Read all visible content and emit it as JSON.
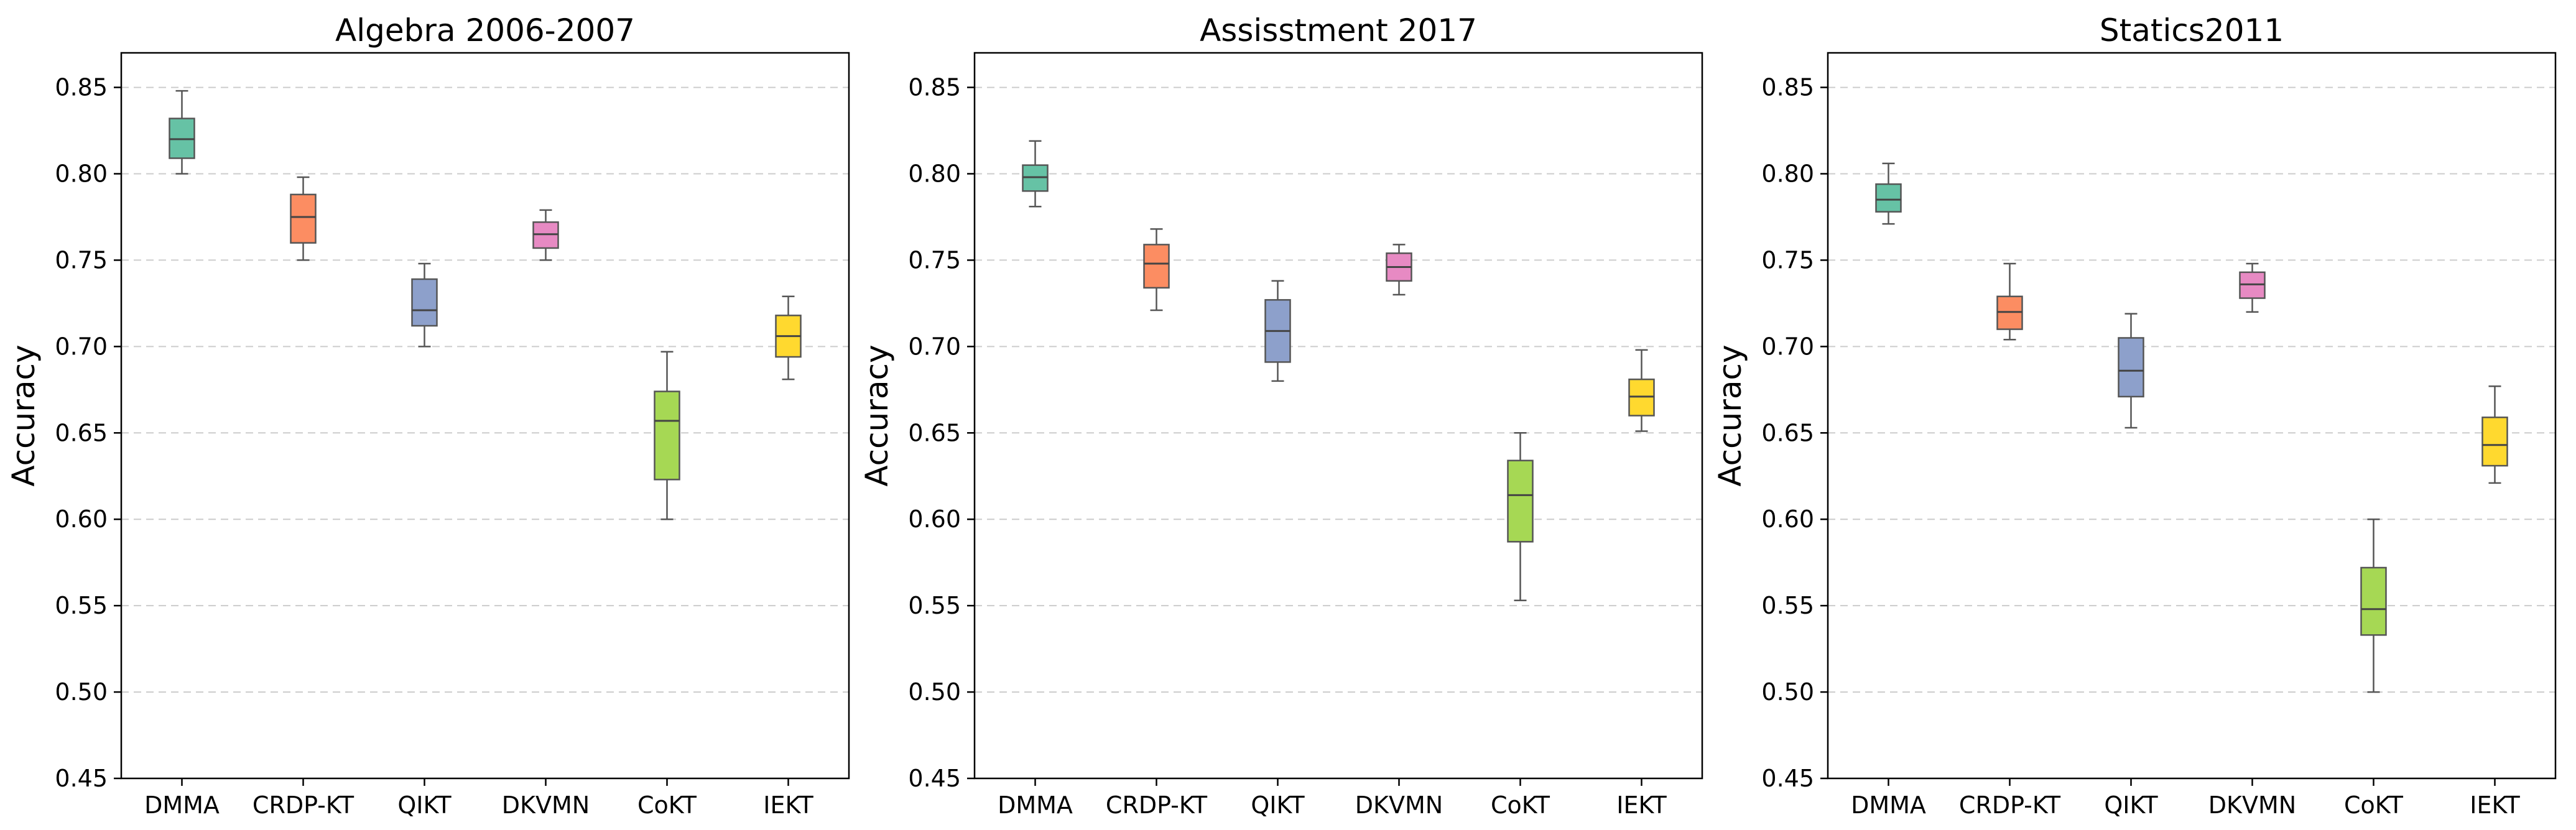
{
  "chart_data": [
    {
      "type": "box",
      "title": "Algebra 2006-2007",
      "ylabel": "Accuracy",
      "ylim": [
        0.45,
        0.87
      ],
      "yticks": [
        "0.45",
        "0.50",
        "0.55",
        "0.60",
        "0.65",
        "0.70",
        "0.75",
        "0.80",
        "0.85"
      ],
      "grid": true,
      "categories": [
        "DMMA",
        "CRDP-KT",
        "QIKT",
        "DKVMN",
        "CoKT",
        "IEKT"
      ],
      "boxes": [
        {
          "min": 0.8,
          "q1": 0.809,
          "median": 0.82,
          "q3": 0.832,
          "max": 0.848
        },
        {
          "min": 0.75,
          "q1": 0.76,
          "median": 0.775,
          "q3": 0.788,
          "max": 0.798
        },
        {
          "min": 0.7,
          "q1": 0.712,
          "median": 0.721,
          "q3": 0.739,
          "max": 0.748
        },
        {
          "min": 0.75,
          "q1": 0.757,
          "median": 0.765,
          "q3": 0.772,
          "max": 0.779
        },
        {
          "min": 0.6,
          "q1": 0.623,
          "median": 0.657,
          "q3": 0.674,
          "max": 0.697
        },
        {
          "min": 0.681,
          "q1": 0.694,
          "median": 0.706,
          "q3": 0.718,
          "max": 0.729
        }
      ]
    },
    {
      "type": "box",
      "title": "Assisstment 2017",
      "ylabel": "Accuracy",
      "ylim": [
        0.45,
        0.87
      ],
      "yticks": [
        "0.45",
        "0.50",
        "0.55",
        "0.60",
        "0.65",
        "0.70",
        "0.75",
        "0.80",
        "0.85"
      ],
      "grid": true,
      "categories": [
        "DMMA",
        "CRDP-KT",
        "QIKT",
        "DKVMN",
        "CoKT",
        "IEKT"
      ],
      "boxes": [
        {
          "min": 0.781,
          "q1": 0.79,
          "median": 0.798,
          "q3": 0.805,
          "max": 0.819
        },
        {
          "min": 0.721,
          "q1": 0.734,
          "median": 0.748,
          "q3": 0.759,
          "max": 0.768
        },
        {
          "min": 0.68,
          "q1": 0.691,
          "median": 0.709,
          "q3": 0.727,
          "max": 0.738
        },
        {
          "min": 0.73,
          "q1": 0.738,
          "median": 0.746,
          "q3": 0.754,
          "max": 0.759
        },
        {
          "min": 0.553,
          "q1": 0.587,
          "median": 0.614,
          "q3": 0.634,
          "max": 0.65
        },
        {
          "min": 0.651,
          "q1": 0.66,
          "median": 0.671,
          "q3": 0.681,
          "max": 0.698
        }
      ]
    },
    {
      "type": "box",
      "title": "Statics2011",
      "ylabel": "Accuracy",
      "ylim": [
        0.45,
        0.87
      ],
      "yticks": [
        "0.45",
        "0.50",
        "0.55",
        "0.60",
        "0.65",
        "0.70",
        "0.75",
        "0.80",
        "0.85"
      ],
      "grid": true,
      "categories": [
        "DMMA",
        "CRDP-KT",
        "QIKT",
        "DKVMN",
        "CoKT",
        "IEKT"
      ],
      "boxes": [
        {
          "min": 0.771,
          "q1": 0.778,
          "median": 0.785,
          "q3": 0.794,
          "max": 0.806
        },
        {
          "min": 0.704,
          "q1": 0.71,
          "median": 0.72,
          "q3": 0.729,
          "max": 0.748
        },
        {
          "min": 0.653,
          "q1": 0.671,
          "median": 0.686,
          "q3": 0.705,
          "max": 0.719
        },
        {
          "min": 0.72,
          "q1": 0.728,
          "median": 0.736,
          "q3": 0.743,
          "max": 0.748
        },
        {
          "min": 0.5,
          "q1": 0.533,
          "median": 0.548,
          "q3": 0.572,
          "max": 0.6
        },
        {
          "min": 0.621,
          "q1": 0.631,
          "median": 0.643,
          "q3": 0.659,
          "max": 0.677
        }
      ]
    }
  ],
  "colors": [
    "#66c2a5",
    "#fc8d62",
    "#8da0cb",
    "#e78ac3",
    "#a6d854",
    "#ffd92f"
  ]
}
